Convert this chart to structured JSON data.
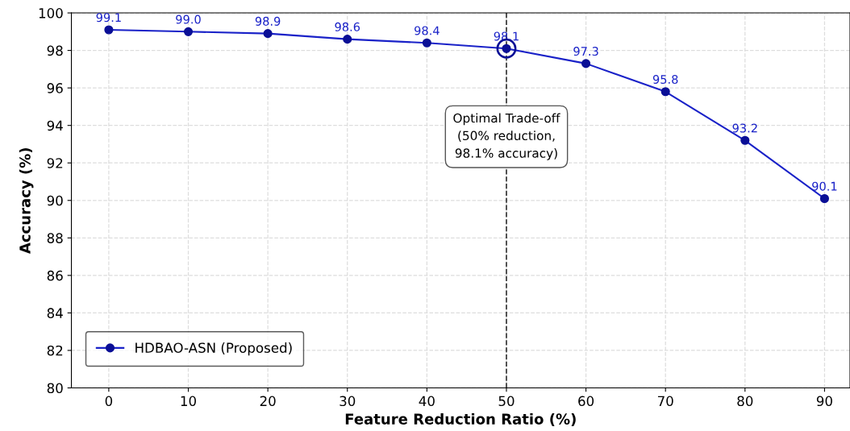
{
  "chart_data": {
    "type": "line",
    "xlabel": "Feature Reduction Ratio (%)",
    "ylabel": "Accuracy (%)",
    "x": [
      0,
      10,
      20,
      30,
      40,
      50,
      60,
      70,
      80,
      90
    ],
    "series": [
      {
        "name": "HDBAO-ASN (Proposed)",
        "color": "#1a22c8",
        "values": [
          99.1,
          99.0,
          98.9,
          98.6,
          98.4,
          98.1,
          97.3,
          95.8,
          93.2,
          90.1
        ],
        "value_labels": [
          "99.1",
          "99.0",
          "98.9",
          "98.6",
          "98.4",
          "98.1",
          "97.3",
          "95.8",
          "93.2",
          "90.1"
        ]
      },
      {
        "type": "scatter",
        "color": "#0a0f96",
        "x": [
          50
        ],
        "values": [
          98.1
        ]
      }
    ],
    "marker": "circle",
    "line_style": "solid",
    "xlim": [
      -4.7,
      93.2
    ],
    "xticks": [
      0,
      10,
      20,
      30,
      40,
      50,
      60,
      70,
      80,
      90
    ],
    "ylim": [
      80,
      100
    ],
    "yticks": [
      80,
      82,
      84,
      86,
      88,
      90,
      92,
      94,
      96,
      98,
      100
    ],
    "grid": true,
    "legend": "bottom left",
    "ref_lines": [
      {
        "axis": "x",
        "value": 50,
        "label": null,
        "color": "#333333",
        "line_style": "dashed"
      }
    ],
    "annotations": [
      {
        "text": "Optimal Trade-off\n(50% reduction,\n98.1% accuracy)",
        "x": 50,
        "y": 93.4
      }
    ]
  }
}
